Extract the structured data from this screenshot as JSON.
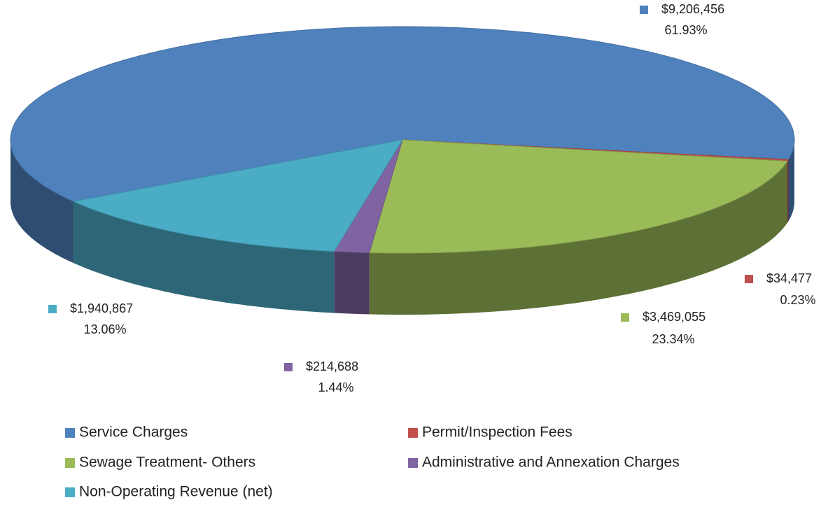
{
  "chart_data": {
    "type": "pie",
    "categories": [
      "Service Charges",
      "Permit/Inspection Fees",
      "Sewage Treatment- Others",
      "Administrative and Annexation Charges",
      "Non-Operating Revenue (net)"
    ],
    "values": [
      9206456,
      34477,
      3469055,
      214688,
      1940867
    ],
    "value_labels": [
      "$9,206,456",
      "$34,477",
      "$3,469,055",
      "$214,688",
      "$1,940,867"
    ],
    "percents": [
      61.93,
      0.23,
      23.34,
      1.44,
      13.06
    ],
    "percent_labels": [
      "61.93%",
      "0.23%",
      "23.34%",
      "1.44%",
      "13.06%"
    ],
    "colors": [
      "#4f81bd",
      "#c0504d",
      "#9bbb59",
      "#8064a2",
      "#4bacc6"
    ],
    "legend": "bottom"
  }
}
